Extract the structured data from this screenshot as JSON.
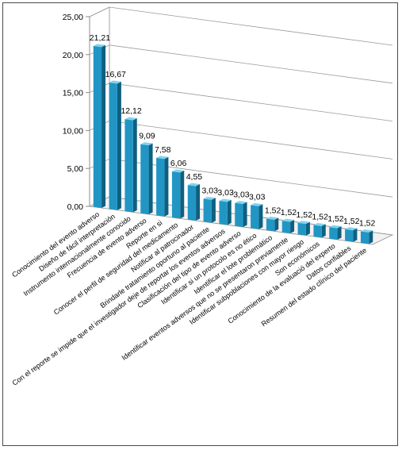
{
  "chart_data": {
    "type": "bar",
    "title": "",
    "xlabel": "",
    "ylabel": "",
    "ylim": [
      0,
      25
    ],
    "yticks": [
      "0,00",
      "5,00",
      "10,00",
      "15,00",
      "20,00",
      "25,00"
    ],
    "grid": true,
    "legend": "none",
    "bar_color": "#2196c4",
    "bar_top_color": "#7fd3ee",
    "bar_side_color": "#0f5f80",
    "categories": [
      "Conocimiento del evento adverso",
      "Diseño de fácil interpretación",
      "Instrumento internacionalmente conocido",
      "Frecuencia de evento adverso",
      "Reporte en si",
      "Conocer el perfil de seguridad del medicamento",
      "Notificar al patrocinador",
      "Brindarle tratamiento oportuno al paciente",
      "Con el reporte se impide que el investigador deje de reportar los eventos adversos",
      "Clasificación del tipo de evento adverso",
      "Identificar si un protocolo es no ético",
      "Identificar el lote problemático",
      "Identificar eventos adversos que no se presentaron previamente",
      "Identificar subpoblaciones con mayor riesgo",
      "Son económicos",
      "Conocimiento de la evaluació del experto",
      "Datos confiables",
      "Resumen del estado clínico del paciente"
    ],
    "values": [
      21.21,
      16.67,
      12.12,
      9.09,
      7.58,
      6.06,
      4.55,
      3.03,
      3.03,
      3.03,
      3.03,
      1.52,
      1.52,
      1.52,
      1.52,
      1.52,
      1.52,
      1.52
    ],
    "data_labels": [
      "21,21",
      "16,67",
      "12,12",
      "9,09",
      "7,58",
      "6,06",
      "4,55",
      "3,03",
      "3,03",
      "3,03",
      "3,03",
      "1,52",
      "1,52",
      "1,52",
      "1,52",
      "1,52",
      "1,52",
      "1,52"
    ]
  }
}
